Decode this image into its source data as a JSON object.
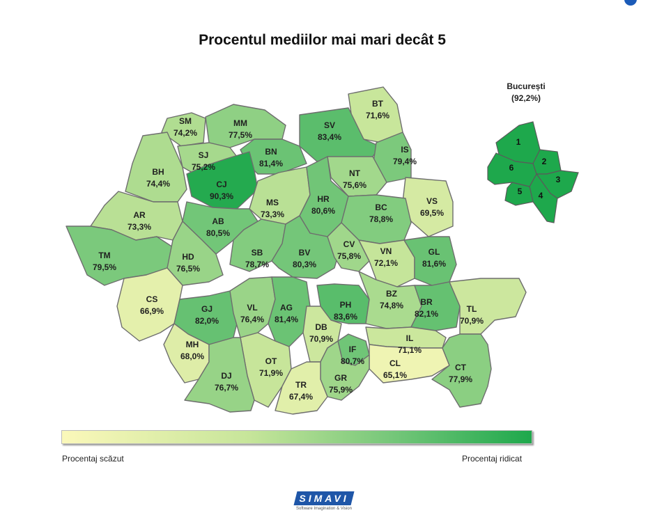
{
  "title": "Procentul mediilor mai mari decât 5",
  "colors": {
    "low": "#fbf8ba",
    "high": "#1ea84c",
    "border": "#6e6e6e"
  },
  "legend": {
    "low_label": "Procentaj scăzut",
    "high_label": "Procentaj ridicat"
  },
  "bucuresti": {
    "name": "București",
    "value": "(92,2%)",
    "percent": 92.2,
    "sectors": [
      "1",
      "2",
      "3",
      "4",
      "5",
      "6"
    ]
  },
  "counties": [
    {
      "code": "BT",
      "value": "71,6%",
      "percent": 71.6
    },
    {
      "code": "SM",
      "value": "74,2%",
      "percent": 74.2
    },
    {
      "code": "MM",
      "value": "77,5%",
      "percent": 77.5
    },
    {
      "code": "SV",
      "value": "83,4%",
      "percent": 83.4
    },
    {
      "code": "SJ",
      "value": "75,2%",
      "percent": 75.2
    },
    {
      "code": "BN",
      "value": "81,4%",
      "percent": 81.4
    },
    {
      "code": "IS",
      "value": "79,4%",
      "percent": 79.4
    },
    {
      "code": "BH",
      "value": "74,4%",
      "percent": 74.4
    },
    {
      "code": "CJ",
      "value": "90,3%",
      "percent": 90.3
    },
    {
      "code": "NT",
      "value": "75,6%",
      "percent": 75.6
    },
    {
      "code": "MS",
      "value": "73,3%",
      "percent": 73.3
    },
    {
      "code": "HR",
      "value": "80,6%",
      "percent": 80.6
    },
    {
      "code": "VS",
      "value": "69,5%",
      "percent": 69.5
    },
    {
      "code": "AR",
      "value": "73,3%",
      "percent": 73.3
    },
    {
      "code": "BC",
      "value": "78,8%",
      "percent": 78.8
    },
    {
      "code": "AB",
      "value": "80,5%",
      "percent": 80.5
    },
    {
      "code": "TM",
      "value": "79,5%",
      "percent": 79.5
    },
    {
      "code": "HD",
      "value": "76,5%",
      "percent": 76.5
    },
    {
      "code": "SB",
      "value": "78,7%",
      "percent": 78.7
    },
    {
      "code": "BV",
      "value": "80,3%",
      "percent": 80.3
    },
    {
      "code": "CV",
      "value": "75,8%",
      "percent": 75.8
    },
    {
      "code": "VN",
      "value": "72,1%",
      "percent": 72.1
    },
    {
      "code": "GL",
      "value": "81,6%",
      "percent": 81.6
    },
    {
      "code": "CS",
      "value": "66,9%",
      "percent": 66.9
    },
    {
      "code": "GJ",
      "value": "82,0%",
      "percent": 82.0
    },
    {
      "code": "VL",
      "value": "76,4%",
      "percent": 76.4
    },
    {
      "code": "AG",
      "value": "81,4%",
      "percent": 81.4
    },
    {
      "code": "PH",
      "value": "83,6%",
      "percent": 83.6
    },
    {
      "code": "BZ",
      "value": "74,8%",
      "percent": 74.8
    },
    {
      "code": "BR",
      "value": "82,1%",
      "percent": 82.1
    },
    {
      "code": "TL",
      "value": "70,9%",
      "percent": 70.9
    },
    {
      "code": "DB",
      "value": "70,9%",
      "percent": 70.9
    },
    {
      "code": "MH",
      "value": "68,0%",
      "percent": 68.0
    },
    {
      "code": "IL",
      "value": "71,1%",
      "percent": 71.1
    },
    {
      "code": "IF",
      "value": "80,7%",
      "percent": 80.7
    },
    {
      "code": "OT",
      "value": "71,9%",
      "percent": 71.9
    },
    {
      "code": "CL",
      "value": "65,1%",
      "percent": 65.1
    },
    {
      "code": "DJ",
      "value": "76,7%",
      "percent": 76.7
    },
    {
      "code": "GR",
      "value": "75,9%",
      "percent": 75.9
    },
    {
      "code": "CT",
      "value": "77,9%",
      "percent": 77.9
    },
    {
      "code": "TR",
      "value": "67,4%",
      "percent": 67.4
    }
  ],
  "logo": {
    "text": "SIMAVI",
    "tagline": "Software Imagination & Vision"
  }
}
